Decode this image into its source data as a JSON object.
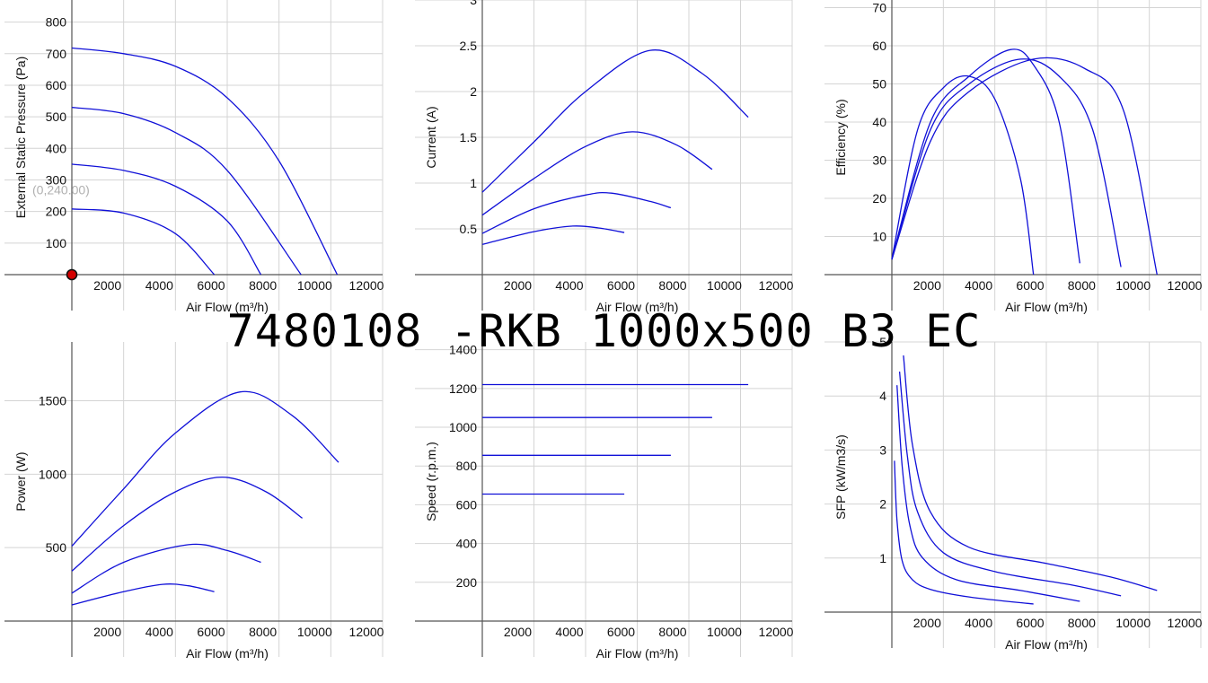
{
  "title": "7480108 -RKB 1000x500 B3 EC",
  "chart_data": [
    {
      "type": "line",
      "ylabel": "External Static Pressure (Pa)",
      "xlabel": "Air Flow (m³/h)",
      "xlim": [
        0,
        12000
      ],
      "ylim": [
        0,
        870
      ],
      "xticks": [
        "2000",
        "4000",
        "6000",
        "8000",
        "10000",
        "12000"
      ],
      "yticks": [
        "100",
        "200",
        "300",
        "400",
        "500",
        "600",
        "700",
        "800"
      ],
      "annotation": "(0,240.00)",
      "marker_point": [
        0,
        0
      ],
      "series": [
        {
          "values": [
            [
              0,
              718
            ],
            [
              2000,
              700
            ],
            [
              4000,
              660
            ],
            [
              6000,
              560
            ],
            [
              8000,
              360
            ],
            [
              10250,
              0
            ]
          ]
        },
        {
          "values": [
            [
              0,
              530
            ],
            [
              2000,
              510
            ],
            [
              4000,
              450
            ],
            [
              6000,
              330
            ],
            [
              8850,
              0
            ]
          ]
        },
        {
          "values": [
            [
              0,
              350
            ],
            [
              2000,
              330
            ],
            [
              4000,
              280
            ],
            [
              6000,
              170
            ],
            [
              7300,
              0
            ]
          ]
        },
        {
          "values": [
            [
              0,
              208
            ],
            [
              2000,
              195
            ],
            [
              4000,
              130
            ],
            [
              5500,
              0
            ]
          ]
        }
      ]
    },
    {
      "type": "line",
      "ylabel": "Current (A)",
      "xlabel": "Air Flow (m³/h)",
      "xlim": [
        0,
        12000
      ],
      "ylim": [
        0,
        3
      ],
      "xticks": [
        "2000",
        "4000",
        "6000",
        "8000",
        "10000",
        "12000"
      ],
      "yticks": [
        "0.5",
        "1",
        "1.5",
        "2",
        "2.5",
        "3"
      ],
      "series": [
        {
          "values": [
            [
              0,
              0.9
            ],
            [
              2000,
              1.45
            ],
            [
              4000,
              2.0
            ],
            [
              6500,
              2.45
            ],
            [
              8500,
              2.2
            ],
            [
              10300,
              1.72
            ]
          ]
        },
        {
          "values": [
            [
              0,
              0.65
            ],
            [
              2000,
              1.05
            ],
            [
              4000,
              1.4
            ],
            [
              5800,
              1.56
            ],
            [
              7500,
              1.42
            ],
            [
              8900,
              1.15
            ]
          ]
        },
        {
          "values": [
            [
              0,
              0.45
            ],
            [
              2000,
              0.72
            ],
            [
              4000,
              0.87
            ],
            [
              5000,
              0.89
            ],
            [
              6500,
              0.8
            ],
            [
              7300,
              0.73
            ]
          ]
        },
        {
          "values": [
            [
              0,
              0.33
            ],
            [
              2000,
              0.47
            ],
            [
              3500,
              0.53
            ],
            [
              4500,
              0.51
            ],
            [
              5500,
              0.46
            ]
          ]
        }
      ]
    },
    {
      "type": "line",
      "ylabel": "Efficiency (%)",
      "xlabel": "Air Flow (m³/h)",
      "xlim": [
        0,
        12000
      ],
      "ylim": [
        0,
        72
      ],
      "xticks": [
        "2000",
        "4000",
        "6000",
        "8000",
        "10000",
        "12000"
      ],
      "yticks": [
        "10",
        "20",
        "30",
        "40",
        "50",
        "60",
        "70"
      ],
      "series": [
        {
          "values": [
            [
              0,
              4
            ],
            [
              1000,
              38
            ],
            [
              2000,
              49
            ],
            [
              3000,
              52
            ],
            [
              4000,
              46
            ],
            [
              5000,
              25
            ],
            [
              5500,
              0
            ]
          ]
        },
        {
          "values": [
            [
              0,
              4
            ],
            [
              1500,
              40
            ],
            [
              3000,
              52
            ],
            [
              4600,
              59
            ],
            [
              5500,
              55
            ],
            [
              6500,
              40
            ],
            [
              7300,
              3
            ]
          ]
        },
        {
          "values": [
            [
              0,
              4
            ],
            [
              1500,
              38
            ],
            [
              3000,
              50
            ],
            [
              5000,
              56.5
            ],
            [
              6500,
              52
            ],
            [
              7800,
              38
            ],
            [
              8900,
              2
            ]
          ]
        },
        {
          "values": [
            [
              0,
              4
            ],
            [
              1500,
              35
            ],
            [
              3000,
              48
            ],
            [
              5500,
              56.5
            ],
            [
              7500,
              54
            ],
            [
              9000,
              43
            ],
            [
              10300,
              0
            ]
          ]
        }
      ]
    },
    {
      "type": "line",
      "ylabel": "Power (W)",
      "xlabel": "Air Flow (m³/h)",
      "xlim": [
        0,
        12000
      ],
      "ylim": [
        0,
        1900
      ],
      "xticks": [
        "2000",
        "4000",
        "6000",
        "8000",
        "10000",
        "12000"
      ],
      "yticks": [
        "500",
        "1000",
        "1500"
      ],
      "series": [
        {
          "values": [
            [
              0,
              510
            ],
            [
              2000,
              900
            ],
            [
              4000,
              1280
            ],
            [
              6500,
              1560
            ],
            [
              8500,
              1400
            ],
            [
              10300,
              1080
            ]
          ]
        },
        {
          "values": [
            [
              0,
              340
            ],
            [
              2000,
              650
            ],
            [
              4000,
              880
            ],
            [
              5800,
              980
            ],
            [
              7500,
              880
            ],
            [
              8900,
              700
            ]
          ]
        },
        {
          "values": [
            [
              0,
              190
            ],
            [
              2000,
              400
            ],
            [
              4500,
              520
            ],
            [
              6000,
              480
            ],
            [
              7300,
              400
            ]
          ]
        },
        {
          "values": [
            [
              0,
              110
            ],
            [
              2000,
              200
            ],
            [
              3500,
              250
            ],
            [
              4500,
              240
            ],
            [
              5500,
              200
            ]
          ]
        }
      ]
    },
    {
      "type": "line",
      "ylabel": "Speed (r.p.m.)",
      "xlabel": "Air Flow (m³/h)",
      "xlim": [
        0,
        12000
      ],
      "ylim": [
        0,
        1440
      ],
      "xticks": [
        "2000",
        "4000",
        "6000",
        "8000",
        "10000",
        "12000"
      ],
      "yticks": [
        "200",
        "400",
        "600",
        "800",
        "1000",
        "1200",
        "1400"
      ],
      "series": [
        {
          "values": [
            [
              0,
              1220
            ],
            [
              10300,
              1220
            ]
          ]
        },
        {
          "values": [
            [
              0,
              1050
            ],
            [
              8900,
              1050
            ]
          ]
        },
        {
          "values": [
            [
              0,
              855
            ],
            [
              7300,
              855
            ]
          ]
        },
        {
          "values": [
            [
              0,
              655
            ],
            [
              5500,
              655
            ]
          ]
        }
      ]
    },
    {
      "type": "line",
      "ylabel": "SFP (kW/m3/s)",
      "xlabel": "Air Flow (m³/h)",
      "xlim": [
        0,
        12000
      ],
      "ylim": [
        0,
        5
      ],
      "xticks": [
        "2000",
        "4000",
        "6000",
        "8000",
        "10000",
        "12000"
      ],
      "yticks": [
        "1",
        "2",
        "3",
        "4",
        "5"
      ],
      "series": [
        {
          "values": [
            [
              100,
              2.8
            ],
            [
              200,
              1.7
            ],
            [
              400,
              0.95
            ],
            [
              800,
              0.6
            ],
            [
              1500,
              0.42
            ],
            [
              3000,
              0.28
            ],
            [
              5500,
              0.15
            ]
          ]
        },
        {
          "values": [
            [
              200,
              4.2
            ],
            [
              400,
              2.7
            ],
            [
              700,
              1.6
            ],
            [
              1200,
              1.0
            ],
            [
              2500,
              0.6
            ],
            [
              5000,
              0.4
            ],
            [
              7300,
              0.2
            ]
          ]
        },
        {
          "values": [
            [
              300,
              4.45
            ],
            [
              600,
              2.9
            ],
            [
              1000,
              1.85
            ],
            [
              2000,
              1.1
            ],
            [
              4000,
              0.75
            ],
            [
              7000,
              0.5
            ],
            [
              8900,
              0.3
            ]
          ]
        },
        {
          "values": [
            [
              450,
              4.75
            ],
            [
              800,
              3.1
            ],
            [
              1500,
              1.85
            ],
            [
              3000,
              1.2
            ],
            [
              6000,
              0.9
            ],
            [
              8500,
              0.65
            ],
            [
              10300,
              0.4
            ]
          ]
        }
      ]
    }
  ]
}
